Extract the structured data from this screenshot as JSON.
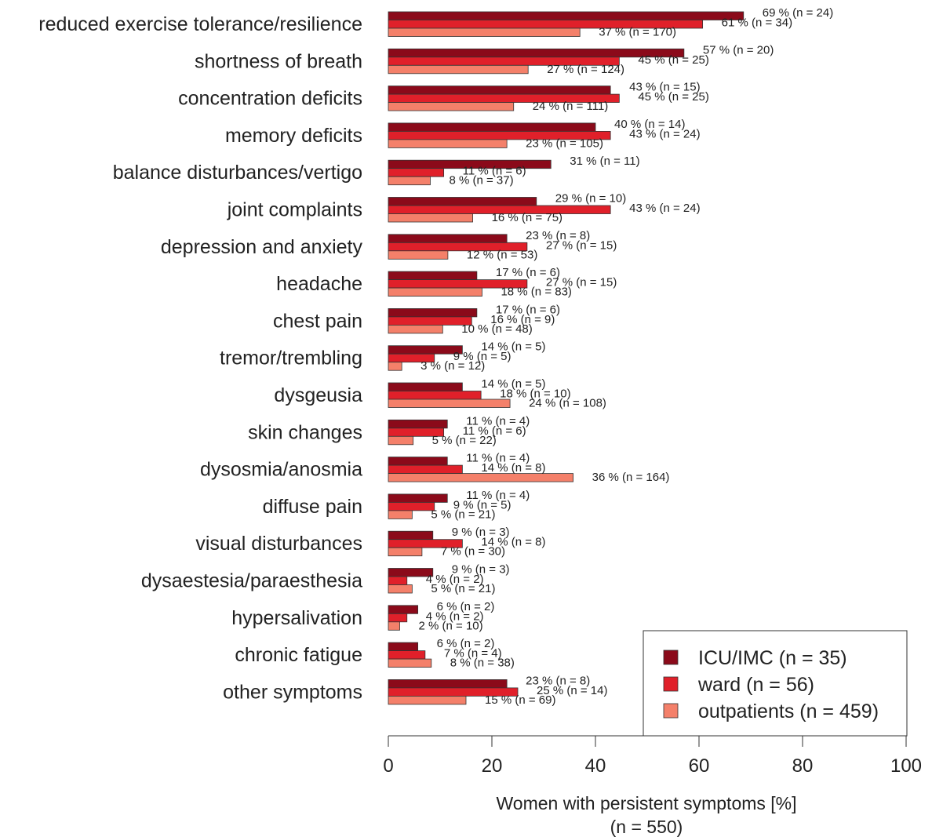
{
  "chart_data": {
    "type": "bar",
    "orientation": "horizontal",
    "xlabel": "Women with persistent symptoms [%]",
    "xlabel_sub": "(n = 550)",
    "xlim": [
      0,
      100
    ],
    "xticks": [
      "0",
      "20",
      "40",
      "60",
      "80",
      "100"
    ],
    "grid": false,
    "legend_position": "bottom-right",
    "categories": [
      "reduced exercise tolerance/resilience",
      "shortness of breath",
      "concentration deficits",
      "memory deficits",
      "balance disturbances/vertigo",
      "joint complaints",
      "depression and anxiety",
      "headache",
      "chest pain",
      "tremor/trembling",
      "dysgeusia",
      "skin changes",
      "dysosmia/anosmia",
      "diffuse pain",
      "visual disturbances",
      "dysaestesia/paraesthesia",
      "hypersalivation",
      "chronic fatigue",
      "other symptoms"
    ],
    "series": [
      {
        "name": "ICU/IMC (n = 35)",
        "color": "#8b0a1a",
        "values": [
          68.6,
          57.1,
          42.9,
          40.0,
          31.4,
          28.6,
          22.9,
          17.1,
          17.1,
          14.3,
          14.3,
          11.4,
          11.4,
          11.4,
          8.6,
          8.6,
          5.7,
          5.7,
          22.9
        ],
        "labels": [
          "69 % (n = 24)",
          "57 % (n = 20)",
          "43 % (n = 15)",
          "40 % (n = 14)",
          "31 % (n = 11)",
          "29 % (n = 10)",
          "23 % (n = 8)",
          "17 % (n = 6)",
          "17 % (n = 6)",
          "14 % (n = 5)",
          "14 % (n = 5)",
          "11 % (n = 4)",
          "11 % (n = 4)",
          "11 % (n = 4)",
          "9 % (n = 3)",
          "9 % (n = 3)",
          "6 % (n = 2)",
          "6 % (n = 2)",
          "23 % (n = 8)"
        ]
      },
      {
        "name": "ward (n = 56)",
        "color": "#e0202a",
        "values": [
          60.7,
          44.6,
          44.6,
          42.9,
          10.7,
          42.9,
          26.8,
          26.8,
          16.1,
          8.9,
          17.9,
          10.7,
          14.3,
          8.9,
          14.3,
          3.6,
          3.6,
          7.1,
          25.0
        ],
        "labels": [
          "61 % (n = 34)",
          "45 % (n = 25)",
          "45 % (n = 25)",
          "43 % (n = 24)",
          "11 % (n = 6)",
          "43 % (n = 24)",
          "27 % (n = 15)",
          "27 % (n = 15)",
          "16 % (n = 9)",
          "9 % (n = 5)",
          "18 % (n = 10)",
          "11 % (n = 6)",
          "14 % (n = 8)",
          "9 % (n = 5)",
          "14 % (n = 8)",
          "4 % (n = 2)",
          "4 % (n = 2)",
          "7 % (n = 4)",
          "25 % (n = 14)"
        ]
      },
      {
        "name": "outpatients (n = 459)",
        "color": "#f4806a",
        "values": [
          37.0,
          27.0,
          24.2,
          22.9,
          8.1,
          16.3,
          11.5,
          18.1,
          10.5,
          2.6,
          23.5,
          4.8,
          35.7,
          4.6,
          6.5,
          4.6,
          2.2,
          8.3,
          15.0
        ],
        "labels": [
          "37 % (n = 170)",
          "27 % (n = 124)",
          "24 % (n = 111)",
          "23 % (n = 105)",
          "8 % (n = 37)",
          "16 % (n = 75)",
          "12 % (n = 53)",
          "18 % (n = 83)",
          "10 % (n = 48)",
          "3 % (n = 12)",
          "24 % (n = 108)",
          "5 % (n = 22)",
          "36 % (n = 164)",
          "5 % (n = 21)",
          "7 % (n = 30)",
          "5 % (n = 21)",
          "2 % (n = 10)",
          "8 % (n = 38)",
          "15 % (n = 69)"
        ]
      }
    ]
  }
}
